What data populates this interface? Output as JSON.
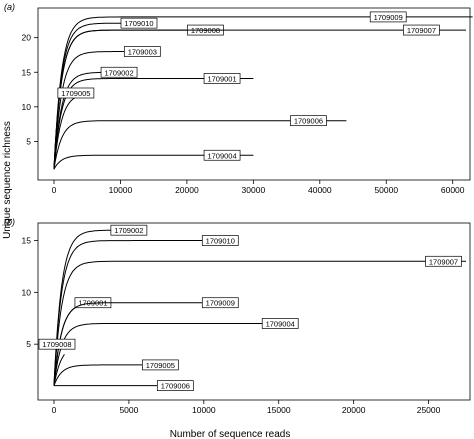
{
  "figure": {
    "ylabel": "Unique sequence richness",
    "xlabel": "Number of sequence reads"
  },
  "chart_data": [
    {
      "panel": "(a)",
      "type": "line",
      "xlim": [
        0,
        62000
      ],
      "ylim": [
        0,
        24
      ],
      "xticks": [
        0,
        10000,
        20000,
        30000,
        40000,
        50000,
        60000
      ],
      "yticks": [
        5,
        10,
        15,
        20
      ],
      "grid": false,
      "series": [
        {
          "name": "1709009",
          "total_reads": 63000,
          "asymptote": 23,
          "label_x": 53000
        },
        {
          "name": "1709010",
          "total_reads": 11500,
          "asymptote": 22.1,
          "label_x": 15500
        },
        {
          "name": "1709008",
          "total_reads": 24000,
          "asymptote": 21.1,
          "label_x": 25500
        },
        {
          "name": "1709007",
          "total_reads": 62000,
          "asymptote": 21.1,
          "label_x": 58000
        },
        {
          "name": "1709003",
          "total_reads": 13500,
          "asymptote": 18,
          "label_x": 16000
        },
        {
          "name": "1709002",
          "total_reads": 10000,
          "asymptote": 15,
          "label_x": 12500
        },
        {
          "name": "1709001",
          "total_reads": 30000,
          "asymptote": 14.1,
          "label_x": 28000
        },
        {
          "name": "1709005",
          "total_reads": 3700,
          "asymptote": 12,
          "label_x": 6000
        },
        {
          "name": "1709006",
          "total_reads": 44000,
          "asymptote": 8,
          "label_x": 41000
        },
        {
          "name": "1709004",
          "total_reads": 30000,
          "asymptote": 3,
          "label_x": 28000
        }
      ]
    },
    {
      "panel": "(b)",
      "type": "line",
      "xlim": [
        0,
        27500
      ],
      "ylim": [
        0,
        16.5
      ],
      "xticks": [
        0,
        5000,
        10000,
        15000,
        20000,
        25000
      ],
      "yticks": [
        5,
        10,
        15
      ],
      "grid": false,
      "series": [
        {
          "name": "1709002",
          "total_reads": 6000,
          "asymptote": 16,
          "label_x": 6200
        },
        {
          "name": "1709010",
          "total_reads": 12000,
          "asymptote": 15,
          "label_x": 12300
        },
        {
          "name": "1709007",
          "total_reads": 27500,
          "asymptote": 13,
          "label_x": 27200
        },
        {
          "name": "1709001",
          "total_reads": 3500,
          "asymptote": 9,
          "label_x": 3800
        },
        {
          "name": "1709009",
          "total_reads": 12000,
          "asymptote": 9,
          "label_x": 12300
        },
        {
          "name": "1709004",
          "total_reads": 16000,
          "asymptote": 7,
          "label_x": 16300
        },
        {
          "name": "1709008",
          "total_reads": 700,
          "asymptote": 5,
          "label_x": 1000
        },
        {
          "name": "1709005",
          "total_reads": 8000,
          "asymptote": 3,
          "label_x": 8300
        },
        {
          "name": "1709006",
          "total_reads": 9000,
          "asymptote": 1,
          "label_x": 9300
        }
      ]
    }
  ]
}
